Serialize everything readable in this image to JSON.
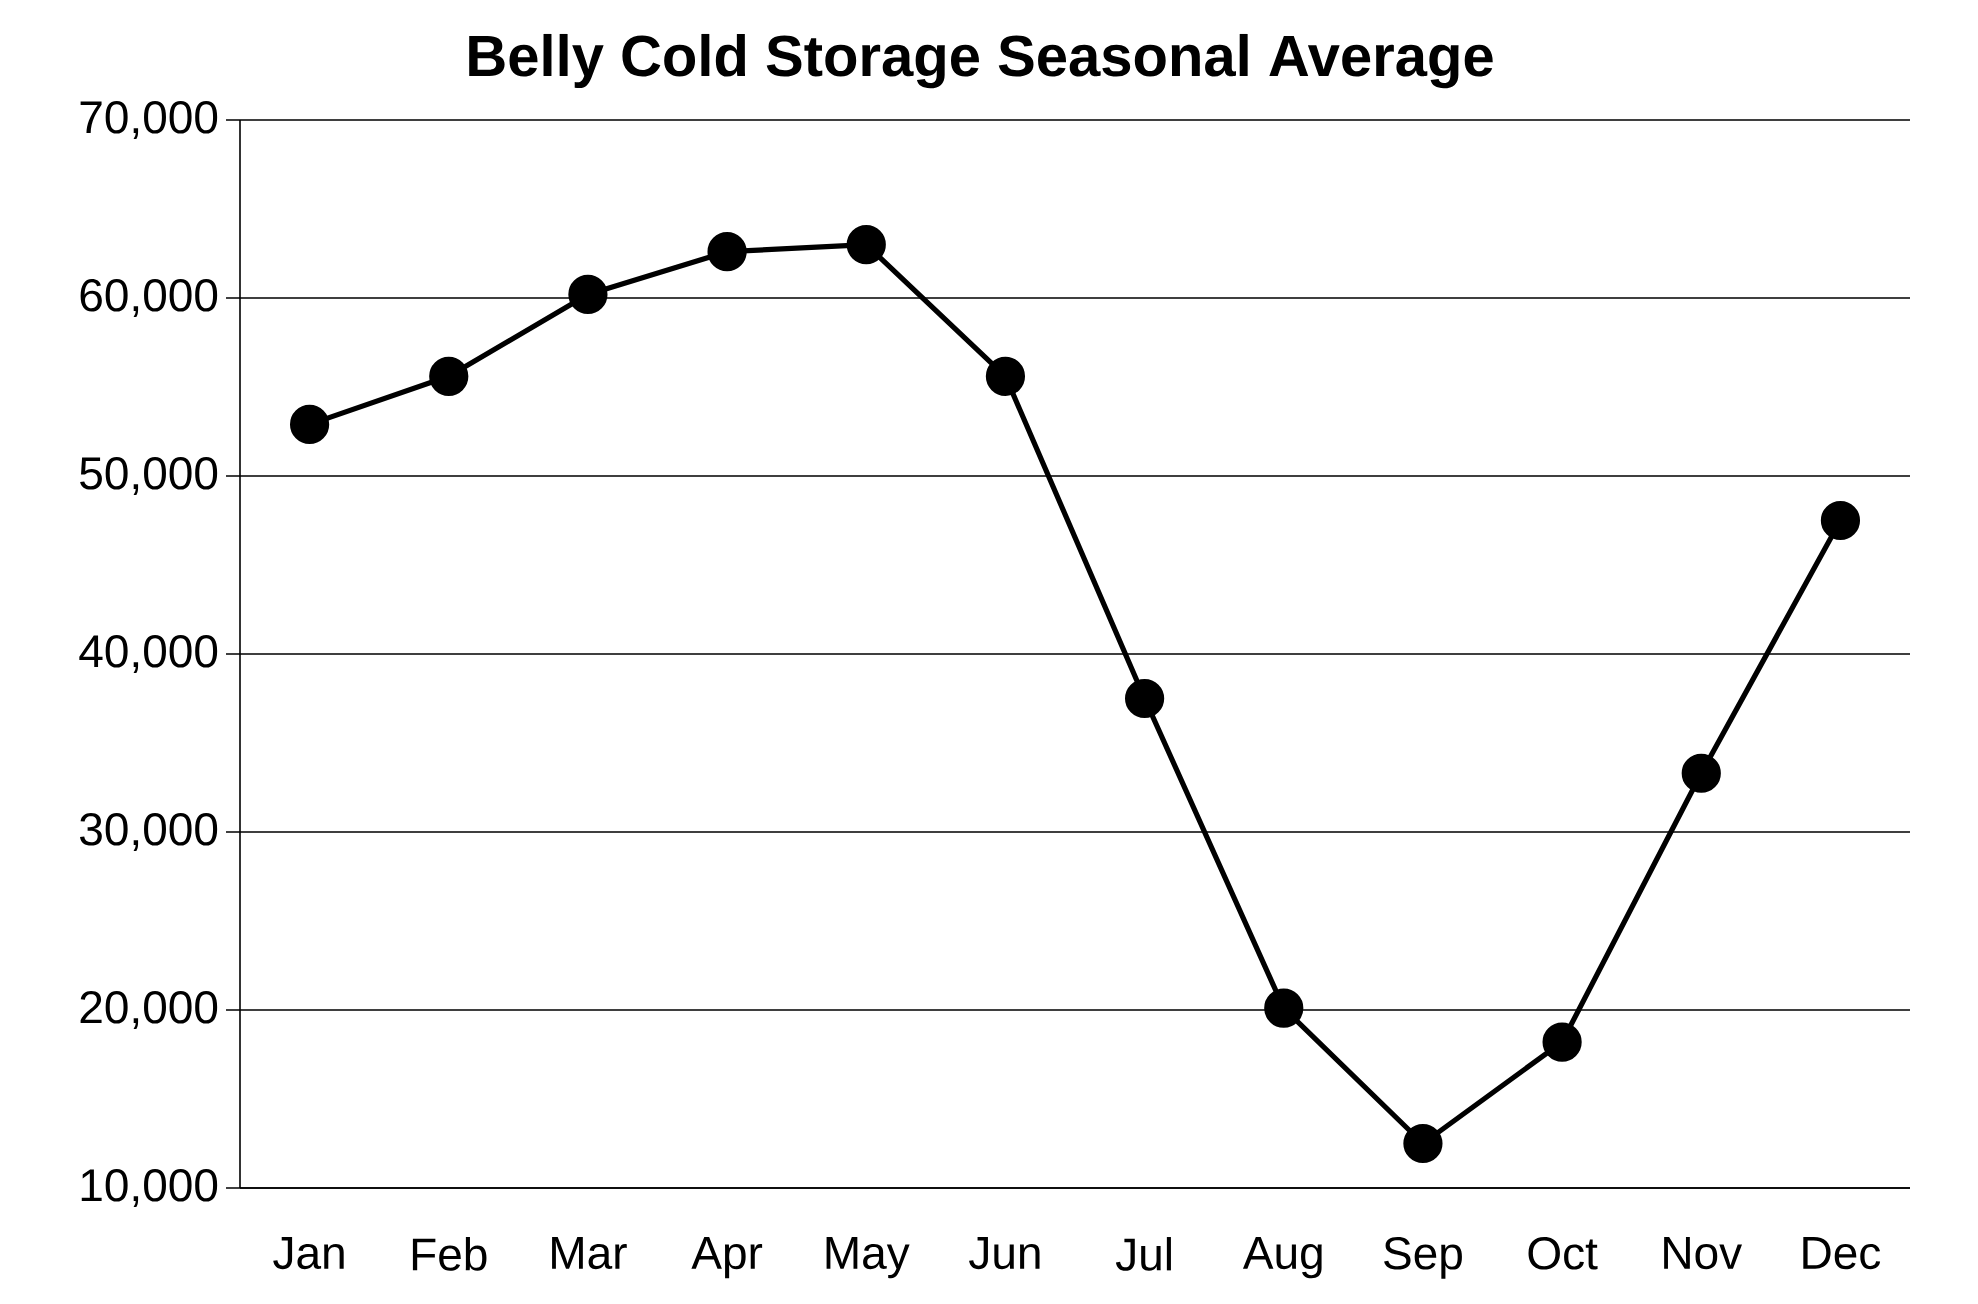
{
  "chart_data": {
    "type": "line",
    "title": "Belly Cold Storage Seasonal Average",
    "categories": [
      "Jan",
      "Feb",
      "Mar",
      "Apr",
      "May",
      "Jun",
      "Jul",
      "Aug",
      "Sep",
      "Oct",
      "Nov",
      "Dec"
    ],
    "series": [
      {
        "color": "#000000",
        "values": [
          52900,
          55600,
          60200,
          62600,
          63000,
          55600,
          37500,
          20100,
          12500,
          18200,
          33300,
          47500
        ]
      }
    ],
    "ylim": [
      10000,
      70000
    ],
    "yticks": [
      {
        "value": 10000,
        "label": "10,000"
      },
      {
        "value": 20000,
        "label": "20,000"
      },
      {
        "value": 30000,
        "label": "30,000"
      },
      {
        "value": 40000,
        "label": "40,000"
      },
      {
        "value": 50000,
        "label": "50,000"
      },
      {
        "value": 60000,
        "label": "60,000"
      },
      {
        "value": 70000,
        "label": "70,000"
      }
    ],
    "grid": "y",
    "marker": "circle",
    "line_style": "solid"
  }
}
